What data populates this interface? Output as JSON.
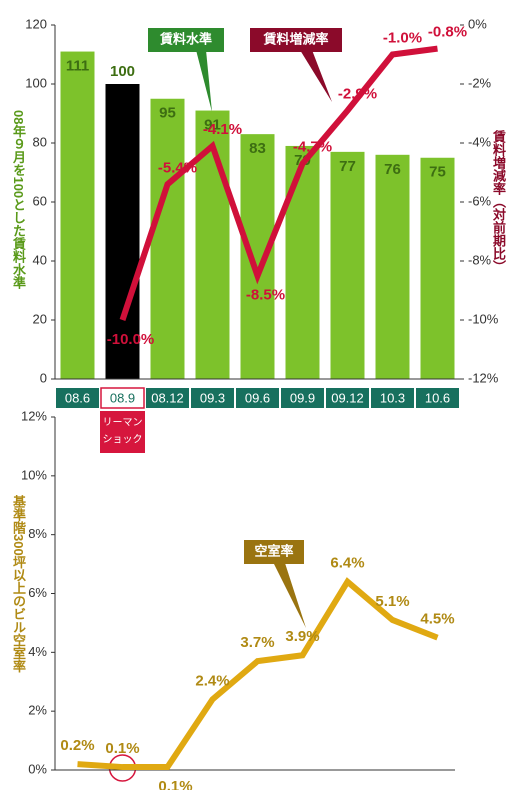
{
  "chart_data": [
    {
      "type": "bar",
      "categories": [
        "08.6",
        "08.9",
        "08.12",
        "09.3",
        "09.6",
        "09.9",
        "09.12",
        "10.3",
        "10.6"
      ],
      "series": [
        {
          "name": "賃料水準",
          "color": "#7dc22b",
          "colors": [
            "#7dc22b",
            "#000000",
            "#7dc22b",
            "#7dc22b",
            "#7dc22b",
            "#7dc22b",
            "#7dc22b",
            "#7dc22b",
            "#7dc22b"
          ],
          "values": [
            111,
            100,
            95,
            91,
            83,
            79,
            77,
            76,
            75
          ]
        },
        {
          "name": "賃料増減率",
          "type": "line",
          "axis": "y2",
          "color": "#d0103a",
          "values": [
            null,
            -10.0,
            -5.4,
            -4.1,
            -8.5,
            -4.7,
            -2.9,
            -1.0,
            -0.8
          ],
          "value_labels": [
            null,
            "-10.0%",
            "-5.4%",
            "-4.1%",
            "-8.5%",
            "-4.7%",
            "-2.9%",
            "-1.0%",
            "-0.8%"
          ]
        }
      ],
      "ylabel": "08年９月を100とした賃料水準",
      "y2label": "賃料増減率（対前期比）",
      "ylim": [
        0,
        120
      ],
      "yticks": [
        0,
        20,
        40,
        60,
        80,
        100,
        120
      ],
      "y2lim": [
        -12,
        0
      ],
      "y2ticks": [
        {
          "value": 0,
          "label": "0%"
        },
        {
          "value": -2,
          "label": "-2%"
        },
        {
          "value": -4,
          "label": "-4%"
        },
        {
          "value": -6,
          "label": "-6%"
        },
        {
          "value": -8,
          "label": "-8%"
        },
        {
          "value": -10,
          "label": "-10%"
        },
        {
          "value": -12,
          "label": "-12%"
        }
      ],
      "annotation": [
        "リーマン",
        "ショック"
      ]
    },
    {
      "type": "line",
      "series": [
        {
          "name": "空室率",
          "color": "#e0a912",
          "values": [
            0.2,
            0.1,
            0.1,
            2.4,
            3.7,
            3.9,
            6.4,
            5.1,
            4.5
          ],
          "value_labels": [
            "0.2%",
            "0.1%",
            "0.1%",
            "2.4%",
            "3.7%",
            "3.9%",
            "6.4%",
            "5.1%",
            "4.5%"
          ]
        }
      ],
      "ylabel": "基準階300坪以上のビル空室率",
      "ylim": [
        0,
        12
      ],
      "yticks": [
        {
          "value": 0,
          "label": "0%"
        },
        {
          "value": 2,
          "label": "2%"
        },
        {
          "value": 4,
          "label": "4%"
        },
        {
          "value": 6,
          "label": "6%"
        },
        {
          "value": 8,
          "label": "8%"
        },
        {
          "value": 10,
          "label": "10%"
        },
        {
          "value": 12,
          "label": "12%"
        }
      ]
    }
  ]
}
